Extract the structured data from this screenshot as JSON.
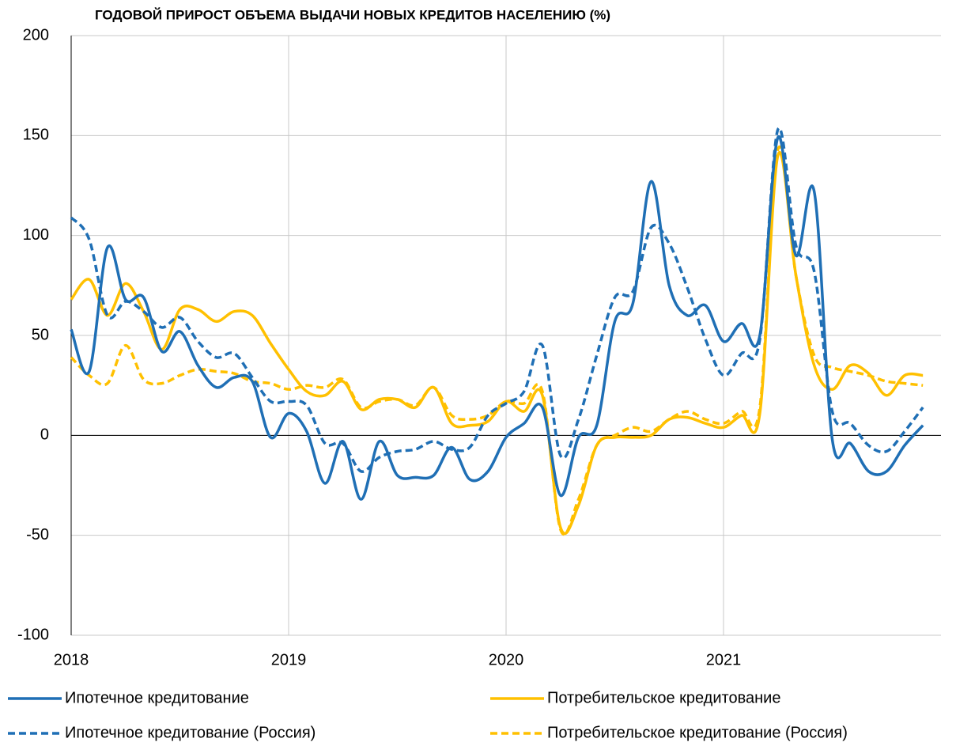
{
  "chart_data": {
    "type": "line",
    "title": "ГОДОВОЙ ПРИРОСТ ОБЪЕМА ВЫДАЧИ НОВЫХ КРЕДИТОВ НАСЕЛЕНИЮ (%)",
    "x": [
      2018.0,
      2018.083,
      2018.167,
      2018.25,
      2018.333,
      2018.417,
      2018.5,
      2018.583,
      2018.667,
      2018.75,
      2018.833,
      2018.917,
      2019.0,
      2019.083,
      2019.167,
      2019.25,
      2019.333,
      2019.417,
      2019.5,
      2019.583,
      2019.667,
      2019.75,
      2019.833,
      2019.917,
      2020.0,
      2020.083,
      2020.167,
      2020.25,
      2020.333,
      2020.417,
      2020.5,
      2020.583,
      2020.667,
      2020.75,
      2020.833,
      2020.917,
      2021.0,
      2021.083,
      2021.167,
      2021.25,
      2021.333,
      2021.417,
      2021.5,
      2021.583,
      2021.667,
      2021.75,
      2021.833,
      2021.917
    ],
    "series": [
      {
        "name": "Ипотечное кредитование",
        "color": "#1f6fb5",
        "dash": false,
        "values": [
          53,
          32,
          94,
          68,
          69,
          42,
          52,
          35,
          24,
          29,
          27,
          -1,
          11,
          2,
          -24,
          -3,
          -32,
          -3,
          -20,
          -21,
          -20,
          -6,
          -22,
          -18,
          -1,
          6,
          14,
          -30,
          -1,
          5,
          57,
          66,
          127,
          75,
          60,
          65,
          47,
          56,
          50,
          149,
          90,
          122,
          -2,
          -4,
          -18,
          -18,
          -5,
          5
        ]
      },
      {
        "name": "Потребительское кредитование",
        "color": "#ffc000",
        "dash": false,
        "values": [
          68,
          78,
          60,
          76,
          62,
          43,
          63,
          63,
          57,
          62,
          60,
          46,
          33,
          22,
          20,
          27,
          13,
          18,
          18,
          14,
          24,
          6,
          5,
          7,
          17,
          12,
          20,
          -46,
          -35,
          -5,
          -1,
          -1,
          0,
          8,
          9,
          6,
          4,
          10,
          11,
          140,
          80,
          35,
          23,
          35,
          31,
          20,
          30,
          30
        ]
      },
      {
        "name": "Ипотечное кредитование (Россия)",
        "color": "#1f6fb5",
        "dash": true,
        "values": [
          109,
          98,
          60,
          67,
          62,
          54,
          59,
          47,
          39,
          41,
          29,
          17,
          17,
          15,
          -4,
          -4,
          -18,
          -11,
          -8,
          -7,
          -3,
          -7,
          -6,
          10,
          16,
          22,
          45,
          -10,
          8,
          40,
          69,
          72,
          104,
          96,
          74,
          48,
          30,
          41,
          48,
          153,
          95,
          82,
          12,
          6,
          -5,
          -8,
          2,
          14
        ]
      },
      {
        "name": "Потребительское кредитование (Россия)",
        "color": "#ffc000",
        "dash": true,
        "values": [
          39,
          30,
          26,
          45,
          28,
          26,
          30,
          33,
          32,
          31,
          27,
          26,
          23,
          25,
          24,
          28,
          14,
          17,
          18,
          15,
          24,
          10,
          8,
          10,
          17,
          16,
          22,
          -47,
          -32,
          -5,
          0,
          4,
          2,
          8,
          12,
          8,
          6,
          12,
          14,
          143,
          80,
          40,
          34,
          32,
          30,
          27,
          26,
          25
        ]
      }
    ],
    "xlim": [
      2018,
      2022
    ],
    "xticks": [
      2018,
      2019,
      2020,
      2021
    ],
    "ylim": [
      -100,
      200
    ],
    "yticks": [
      -100,
      -50,
      0,
      50,
      100,
      150,
      200
    ],
    "grid": true
  }
}
